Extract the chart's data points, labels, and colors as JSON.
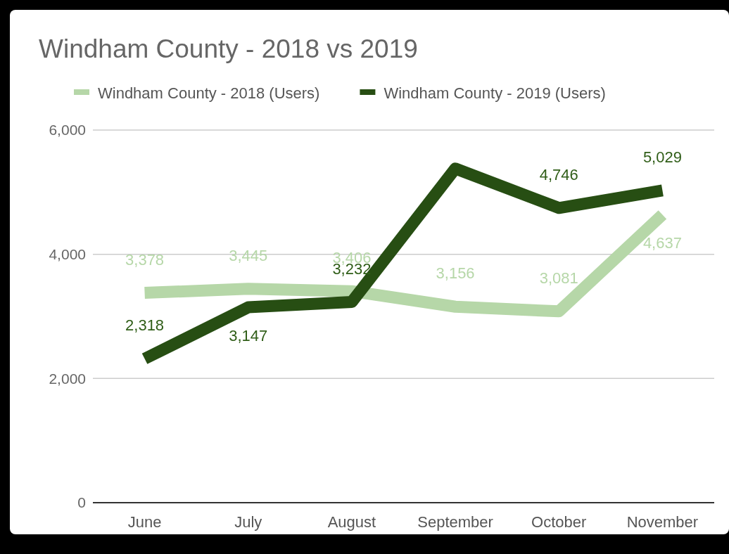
{
  "chart_data": {
    "type": "line",
    "title": "Windham County - 2018 vs 2019",
    "categories": [
      "June",
      "July",
      "August",
      "September",
      "October",
      "November"
    ],
    "series": [
      {
        "name": "Windham County - 2018 (Users)",
        "color": "#b6d7a8",
        "values": [
          3378,
          3445,
          3406,
          3156,
          3081,
          4637
        ],
        "value_labels": [
          "3,378",
          "3,445",
          "3,406",
          "3,156",
          "3,081",
          "4,637"
        ]
      },
      {
        "name": "Windham County - 2019 (Users)",
        "color": "#274e13",
        "values": [
          2318,
          3147,
          3232,
          5380,
          4746,
          5029
        ],
        "value_labels": [
          "2,318",
          "3,147",
          "3,232",
          null,
          "4,746",
          "5,029"
        ]
      }
    ],
    "ylim": [
      0,
      6000
    ],
    "yticks": [
      {
        "value": 0,
        "label": "0"
      },
      {
        "value": 2000,
        "label": "2,000"
      },
      {
        "value": 4000,
        "label": "4,000"
      },
      {
        "value": 6000,
        "label": "6,000"
      }
    ],
    "grid": "y",
    "legend": "top",
    "marker": "none",
    "line_style": "solid"
  }
}
